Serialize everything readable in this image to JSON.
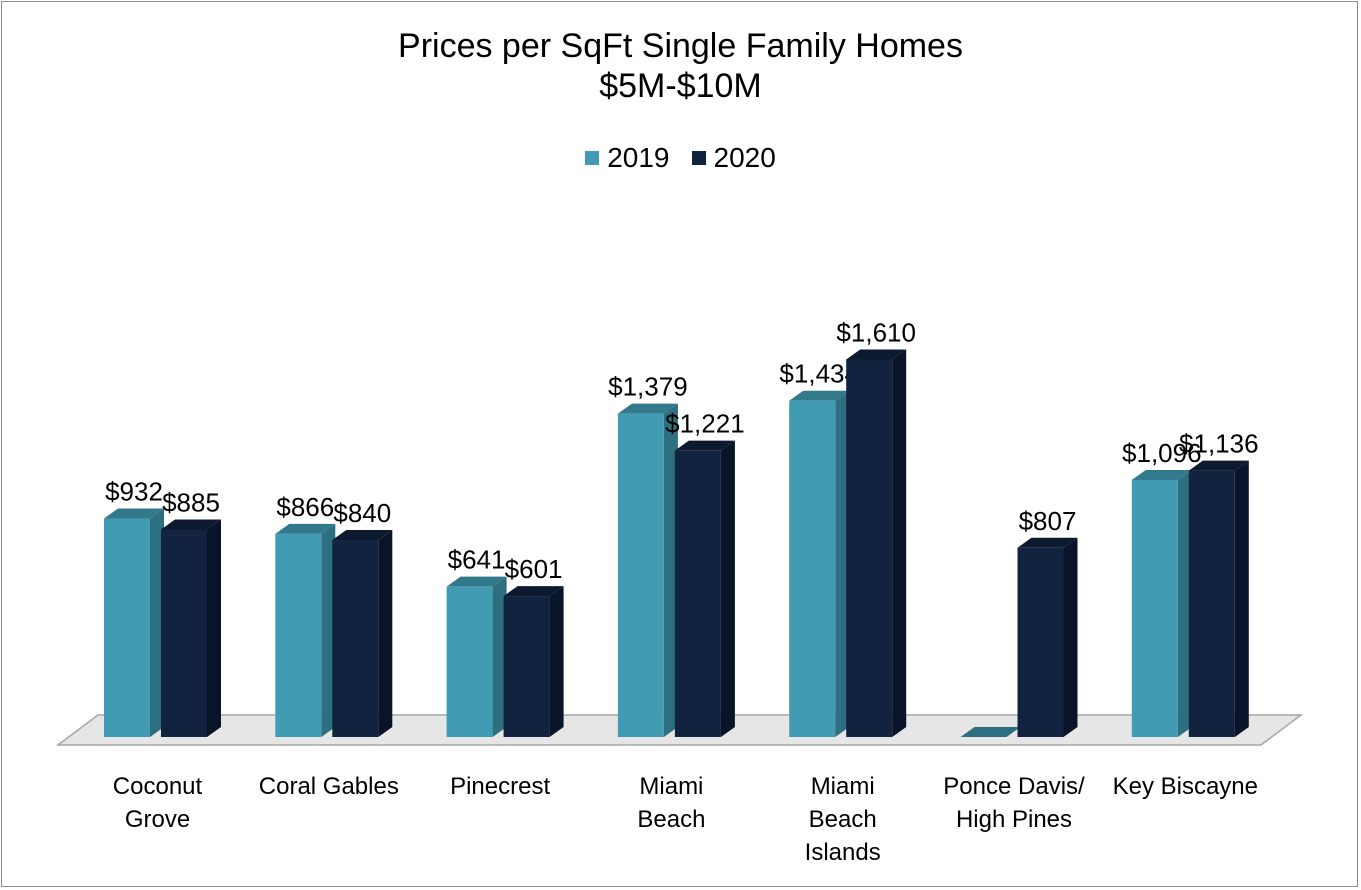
{
  "chart_data": {
    "type": "bar",
    "title": "Prices per SqFt Single Family Homes",
    "subtitle": "$5M-$10M",
    "categories": [
      [
        "Coconut",
        "Grove"
      ],
      [
        "Coral Gables"
      ],
      [
        "Pinecrest"
      ],
      [
        "Miami",
        "Beach"
      ],
      [
        "Miami",
        "Beach",
        "Islands"
      ],
      [
        "Ponce Davis/",
        "High Pines"
      ],
      [
        "Key Biscayne"
      ]
    ],
    "series": [
      {
        "name": "2019",
        "color": "#419bb3",
        "side_color": "#2d6f80",
        "top_color": "#33798c",
        "values": [
          932,
          866,
          641,
          1379,
          1434,
          0,
          1096
        ],
        "labels": [
          "$932",
          "$866",
          "$641",
          "$1,379",
          "$1,434",
          "",
          "$1,096"
        ]
      },
      {
        "name": "2020",
        "color": "#12233f",
        "side_color": "#0a1428",
        "top_color": "#0c192f",
        "values": [
          885,
          840,
          601,
          1221,
          1610,
          807,
          1136
        ],
        "labels": [
          "$885",
          "$840",
          "$601",
          "$1,221",
          "$1,610",
          "$807",
          "$1,136"
        ]
      }
    ],
    "ylim": [
      0,
      1700
    ],
    "grid": false,
    "legend_position": "top-center",
    "style": "3d-clustered-column"
  }
}
